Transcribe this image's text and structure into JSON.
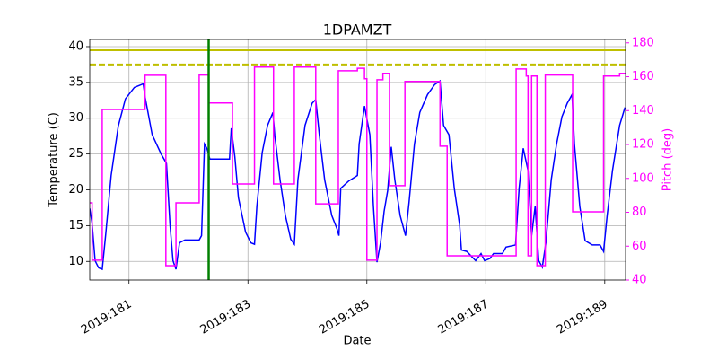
{
  "chart_data": {
    "type": "line",
    "title": "1DPAMZT",
    "xlabel": "Date",
    "ylabel": "Temperature (C)",
    "y2label": "Pitch (deg)",
    "xlim": [
      180.34,
      189.35
    ],
    "xticks": [
      {
        "value": 181,
        "label": "2019:181"
      },
      {
        "value": 183,
        "label": "2019:183"
      },
      {
        "value": 185,
        "label": "2019:185"
      },
      {
        "value": 187,
        "label": "2019:187"
      },
      {
        "value": 189,
        "label": "2019:189"
      }
    ],
    "ylim": [
      7.4,
      41.0
    ],
    "yticks": [
      10,
      15,
      20,
      25,
      30,
      35,
      40
    ],
    "y2lim": [
      40,
      182
    ],
    "y2ticks": [
      40,
      60,
      80,
      100,
      120,
      140,
      160,
      180
    ],
    "y2color": "#ff00ff",
    "grid": true,
    "hlines": [
      {
        "value": 39.5,
        "color": "#bfbf00",
        "style": "solid"
      },
      {
        "value": 37.5,
        "color": "#bfbf00",
        "style": "dashed"
      }
    ],
    "vlines": [
      {
        "value": 182.34,
        "color": "#008000",
        "style": "solid"
      }
    ],
    "series": [
      {
        "color": "#0000ff",
        "x": [
          180.34,
          180.38,
          180.43,
          180.49,
          180.55,
          180.61,
          180.7,
          180.82,
          180.94,
          181.09,
          181.24,
          181.27,
          181.39,
          181.54,
          181.63,
          181.69,
          181.74,
          181.79,
          181.85,
          181.94,
          182.18,
          182.22,
          182.27,
          182.31,
          182.36,
          182.69,
          182.72,
          182.78,
          182.84,
          182.96,
          183.05,
          183.11,
          183.15,
          183.24,
          183.33,
          183.42,
          183.45,
          183.54,
          183.63,
          183.72,
          183.78,
          183.84,
          183.96,
          184.08,
          184.14,
          184.2,
          184.29,
          184.41,
          184.5,
          184.53,
          184.56,
          184.69,
          184.84,
          184.87,
          184.96,
          185.05,
          185.11,
          185.17,
          185.23,
          185.29,
          185.35,
          185.41,
          185.47,
          185.56,
          185.65,
          185.71,
          185.8,
          185.89,
          186.02,
          186.14,
          186.23,
          186.29,
          186.38,
          186.47,
          186.56,
          186.59,
          186.68,
          186.83,
          186.92,
          186.98,
          187.07,
          187.13,
          187.28,
          187.34,
          187.5,
          187.56,
          187.63,
          187.71,
          187.77,
          187.83,
          187.89,
          187.95,
          188.01,
          188.1,
          188.19,
          188.28,
          188.37,
          188.45,
          188.49,
          188.58,
          188.67,
          188.79,
          188.92,
          188.98,
          189.04,
          189.13,
          189.25,
          189.34
        ],
        "values": [
          17.4,
          15.3,
          10.1,
          9.1,
          8.9,
          13.9,
          22,
          28.9,
          32.7,
          34.3,
          34.8,
          33,
          27.7,
          25,
          23.7,
          15.1,
          10.1,
          8.9,
          12.6,
          13,
          13,
          13.6,
          26.4,
          25.8,
          24.3,
          24.3,
          28.6,
          24.6,
          18.9,
          14.1,
          12.6,
          12.4,
          17.7,
          25.2,
          29,
          30.8,
          27.7,
          21.4,
          16.4,
          13.1,
          12.4,
          21.4,
          29,
          32.1,
          32.6,
          27.7,
          21.4,
          16.4,
          14.5,
          13.6,
          20.2,
          21.2,
          22,
          26.4,
          31.7,
          27.7,
          17.7,
          9.9,
          12.6,
          17,
          19.9,
          26,
          21.4,
          16.4,
          13.6,
          18.3,
          26.4,
          30.8,
          33.3,
          34.7,
          35.2,
          29,
          27.7,
          20.2,
          15.1,
          11.6,
          11.4,
          10.1,
          11.1,
          10.1,
          10.4,
          11.1,
          11.1,
          12,
          12.3,
          20.2,
          25.8,
          22.7,
          13.6,
          17.7,
          10.1,
          9.2,
          12.6,
          21.4,
          26.4,
          30.2,
          32.1,
          33.3,
          26.4,
          17.7,
          12.9,
          12.3,
          12.3,
          11.4,
          16.4,
          22.7,
          29,
          31.5
        ]
      },
      {
        "color": "#ff00ff",
        "axis": "y2",
        "x": [
          180.34,
          180.38,
          180.38,
          180.55,
          180.55,
          181.27,
          181.27,
          181.62,
          181.62,
          181.79,
          181.79,
          182.18,
          182.18,
          182.34,
          182.34,
          182.74,
          182.74,
          183.11,
          183.11,
          183.43,
          183.43,
          183.78,
          183.78,
          184.14,
          184.14,
          184.52,
          184.52,
          184.84,
          184.84,
          184.96,
          184.96,
          185.0,
          185.0,
          185.17,
          185.17,
          185.27,
          185.27,
          185.38,
          185.38,
          185.64,
          185.64,
          186.23,
          186.23,
          186.35,
          186.35,
          187.51,
          187.51,
          187.68,
          187.68,
          187.71,
          187.71,
          187.77,
          187.77,
          187.86,
          187.86,
          188.0,
          188.0,
          188.46,
          188.46,
          188.98,
          188.98,
          189.25,
          189.25,
          189.35
        ],
        "values": [
          85.6,
          85.6,
          51.7,
          51.7,
          140.7,
          140.7,
          160.9,
          160.9,
          48.5,
          48.5,
          85.6,
          85.6,
          161,
          161,
          144.5,
          144.5,
          96.7,
          96.7,
          165.7,
          165.7,
          96.7,
          96.7,
          165.7,
          165.7,
          85,
          85,
          163.5,
          163.5,
          165,
          165,
          158.8,
          158.8,
          51.7,
          51.7,
          158.2,
          158.2,
          162,
          162,
          95.7,
          95.7,
          157.2,
          157.2,
          119,
          119,
          54.3,
          54.3,
          164.6,
          164.6,
          160.4,
          160.4,
          54.3,
          54.3,
          160.4,
          160.4,
          48.5,
          48.5,
          161,
          161,
          80.3,
          80.3,
          160.4,
          160.4,
          162,
          162
        ]
      }
    ]
  }
}
